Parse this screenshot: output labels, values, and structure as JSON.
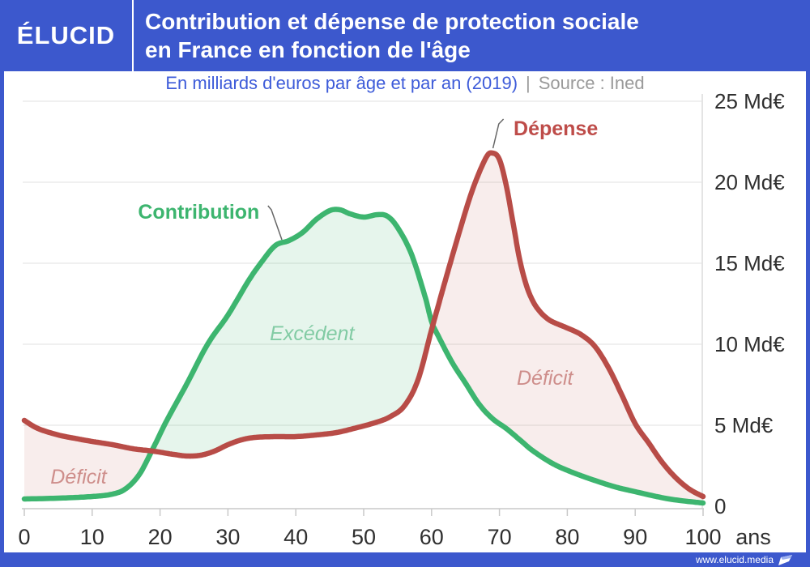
{
  "header": {
    "logo": "ÉLUCID",
    "title_line1": "Contribution et dépense de protection sociale",
    "title_line2": "en France en fonction de l'âge"
  },
  "subtitle": {
    "main": "En milliards d'euros par âge et par an (2019)",
    "separator": "|",
    "source": "Source : Ined"
  },
  "footer": {
    "url": "www.elucid.media"
  },
  "colors": {
    "brand_blue": "#3C58CD",
    "subtitle_blue": "#3D5BD9",
    "source_gray": "#9A9A9A",
    "contribution_green": "#3DB56F",
    "depense_red": "#B84C47",
    "excedent_label_green": "#82CBA4",
    "deficit_label_red": "#CE8E8B",
    "axis_text": "#2F2F2F",
    "gridline": "#EBEBEB",
    "axis_line": "#C9C9C9"
  },
  "chart_data": {
    "type": "line",
    "title": "Contribution et dépense de protection sociale en France en fonction de l'âge",
    "subtitle": "En milliards d'euros par âge et par an (2019)",
    "source": "Ined",
    "unit": "Md€",
    "x_suffix": "ans",
    "xlim": [
      0,
      100
    ],
    "ylim": [
      0,
      25
    ],
    "grid": true,
    "yticks": [
      {
        "v": 0,
        "label": "0"
      },
      {
        "v": 5,
        "label": "5 Md€"
      },
      {
        "v": 10,
        "label": "10 Md€"
      },
      {
        "v": 15,
        "label": "15 Md€"
      },
      {
        "v": 20,
        "label": "20 Md€"
      },
      {
        "v": 25,
        "label": "25 Md€"
      }
    ],
    "xticks": [
      {
        "v": 0,
        "label": "0"
      },
      {
        "v": 10,
        "label": "10"
      },
      {
        "v": 20,
        "label": "20"
      },
      {
        "v": 30,
        "label": "30"
      },
      {
        "v": 40,
        "label": "40"
      },
      {
        "v": 50,
        "label": "50"
      },
      {
        "v": 60,
        "label": "60"
      },
      {
        "v": 70,
        "label": "70"
      },
      {
        "v": 80,
        "label": "80"
      },
      {
        "v": 90,
        "label": "90"
      },
      {
        "v": 100,
        "label": "100"
      }
    ],
    "series": [
      {
        "name": "Contribution",
        "color": "#3DB56F",
        "fill": "rgba(61,181,111,0.13)",
        "x": [
          0,
          5,
          10,
          13,
          15,
          17,
          19,
          21,
          24,
          27,
          30,
          33,
          35,
          37,
          39,
          41,
          43,
          45,
          46.5,
          48,
          50,
          52,
          53.5,
          55,
          57,
          59,
          60,
          61,
          63,
          65,
          67,
          69,
          71,
          73,
          75,
          78,
          81,
          84,
          87,
          90,
          95,
          100
        ],
        "values": [
          0.45,
          0.5,
          0.6,
          0.75,
          1.1,
          2.0,
          3.6,
          5.3,
          7.6,
          10.0,
          11.8,
          13.9,
          15.1,
          16.1,
          16.4,
          16.9,
          17.7,
          18.25,
          18.3,
          18.05,
          17.85,
          18.0,
          17.9,
          17.2,
          15.6,
          13.0,
          11.4,
          10.5,
          8.9,
          7.6,
          6.3,
          5.4,
          4.8,
          4.1,
          3.4,
          2.6,
          2.05,
          1.6,
          1.2,
          0.9,
          0.45,
          0.2
        ]
      },
      {
        "name": "Dépense",
        "color": "#B84C47",
        "fill": "rgba(184,76,71,0.10)",
        "x": [
          0,
          2,
          5,
          8,
          10,
          13,
          16,
          19,
          22,
          24,
          26,
          28,
          30,
          32,
          34,
          37,
          40,
          43,
          46,
          49,
          52,
          54,
          56,
          58,
          60,
          61,
          62,
          64,
          66,
          68,
          69,
          70,
          71,
          72,
          73,
          74,
          75,
          76,
          77,
          78,
          80,
          82,
          84,
          86,
          88,
          90,
          92,
          94,
          96,
          98,
          100
        ],
        "values": [
          5.3,
          4.8,
          4.4,
          4.15,
          4.0,
          3.8,
          3.55,
          3.4,
          3.2,
          3.1,
          3.15,
          3.4,
          3.8,
          4.1,
          4.25,
          4.3,
          4.3,
          4.4,
          4.55,
          4.85,
          5.2,
          5.55,
          6.2,
          7.8,
          10.9,
          12.4,
          13.9,
          16.8,
          19.5,
          21.5,
          21.8,
          21.4,
          19.8,
          17.5,
          15.2,
          13.6,
          12.6,
          12.0,
          11.6,
          11.35,
          11.0,
          10.6,
          9.9,
          8.6,
          6.9,
          5.1,
          3.9,
          2.7,
          1.75,
          1.05,
          0.6
        ]
      }
    ],
    "curve_labels": [
      {
        "text": "Contribution",
        "x": 25.7,
        "y": 18.2,
        "color": "#3DB56F",
        "connector": [
          [
            35.9,
            18.55
          ],
          [
            36.4,
            18.3
          ],
          [
            37.95,
            16.45
          ]
        ]
      },
      {
        "text": "Dépense",
        "x": 78.3,
        "y": 23.35,
        "color": "#BE4C49",
        "connector": [
          [
            70.6,
            23.9
          ],
          [
            69.9,
            23.6
          ],
          [
            69.05,
            22.1
          ]
        ]
      }
    ],
    "region_labels": [
      {
        "text": "Déficit",
        "x": 8.0,
        "y": 1.85,
        "color": "#CE8E8B"
      },
      {
        "text": "Excédent",
        "x": 42.4,
        "y": 10.7,
        "color": "#82CBA4"
      },
      {
        "text": "Déficit",
        "x": 76.7,
        "y": 7.95,
        "color": "#CE8E8B"
      }
    ],
    "legend_position": "labels-on-chart"
  }
}
